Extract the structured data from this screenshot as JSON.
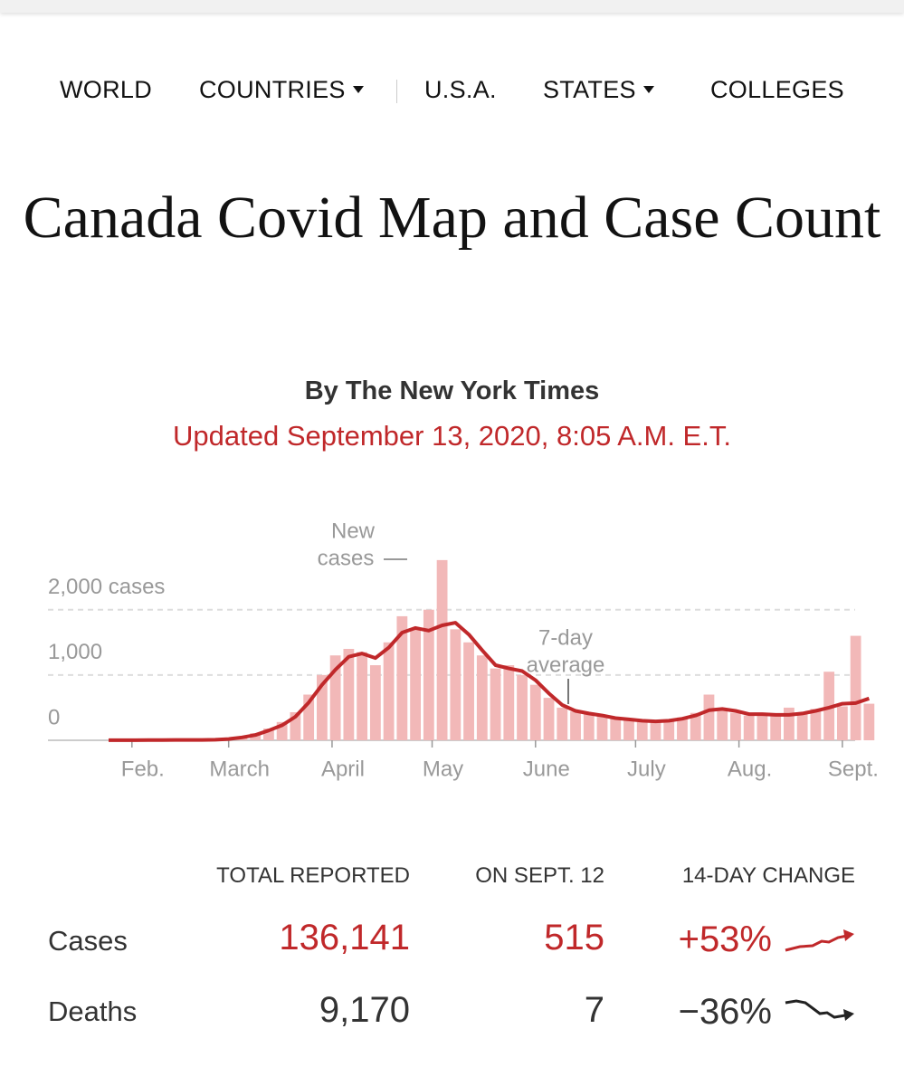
{
  "nav": {
    "items": [
      "WORLD",
      "COUNTRIES",
      "U.S.A.",
      "STATES",
      "COLLEGES"
    ]
  },
  "header": {
    "title": "Canada Covid Map and Case Count",
    "byline": "By The New York Times",
    "updated": "Updated September 13, 2020, 8:05 A.M. E.T."
  },
  "chart_data": {
    "type": "bar",
    "annotations": [
      "New",
      "cases",
      "7-day",
      "average"
    ],
    "x": [
      25,
      29,
      33,
      37,
      41,
      45,
      49,
      53,
      57,
      61,
      65,
      69,
      73,
      77,
      81,
      85,
      89,
      93,
      97,
      101,
      105,
      109,
      113,
      117,
      121,
      125,
      129,
      133,
      137,
      141,
      145,
      149,
      153,
      157,
      161,
      165,
      169,
      173,
      177,
      181,
      185,
      189,
      193,
      197,
      201,
      205,
      209,
      213,
      217,
      221,
      225,
      229,
      233,
      237,
      241,
      245,
      249,
      253
    ],
    "series": [
      {
        "name": "New cases",
        "type": "bar",
        "color": "#f2b8b8",
        "values": [
          0,
          0,
          0,
          0,
          0,
          0,
          0,
          0,
          10,
          25,
          60,
          110,
          180,
          280,
          430,
          700,
          1000,
          1300,
          1400,
          1350,
          1150,
          1500,
          1900,
          1700,
          2000,
          2760,
          1700,
          1500,
          1300,
          1100,
          1150,
          1000,
          850,
          650,
          500,
          440,
          400,
          370,
          330,
          310,
          280,
          300,
          310,
          350,
          420,
          700,
          450,
          420,
          380,
          410,
          400,
          500,
          400,
          480,
          1050,
          520,
          1600,
          560
        ]
      },
      {
        "name": "7-day average",
        "type": "line",
        "color": "#c0282a",
        "values": [
          1,
          1,
          2,
          3,
          4,
          5,
          5,
          6,
          8,
          20,
          45,
          80,
          150,
          230,
          360,
          580,
          850,
          1080,
          1280,
          1330,
          1260,
          1420,
          1650,
          1720,
          1680,
          1760,
          1800,
          1620,
          1380,
          1150,
          1100,
          1060,
          920,
          720,
          540,
          450,
          410,
          380,
          340,
          320,
          300,
          290,
          300,
          330,
          380,
          460,
          480,
          450,
          400,
          400,
          390,
          390,
          410,
          450,
          500,
          560,
          570,
          640
        ]
      }
    ],
    "xlim": [
      18,
      258
    ],
    "xticks": [
      {
        "value": 32,
        "label": "Feb."
      },
      {
        "value": 61,
        "label": "March"
      },
      {
        "value": 92,
        "label": "April"
      },
      {
        "value": 122,
        "label": "May"
      },
      {
        "value": 153,
        "label": "June"
      },
      {
        "value": 183,
        "label": "July"
      },
      {
        "value": 214,
        "label": "Aug."
      },
      {
        "value": 245,
        "label": "Sept."
      }
    ],
    "ylim": [
      0,
      2800
    ],
    "yticks": [
      0,
      {
        "value": 1000,
        "label": "1,000"
      },
      {
        "value": 2000,
        "label": "2,000 cases"
      }
    ],
    "grid": true
  },
  "table": {
    "columns": [
      "TOTAL REPORTED",
      "ON SEPT. 12",
      "14-DAY CHANGE"
    ],
    "rows": [
      [
        "Cases",
        "136,141",
        "515",
        "+53%"
      ],
      [
        "Deaths",
        "9,170",
        "7",
        "−36%"
      ]
    ]
  }
}
